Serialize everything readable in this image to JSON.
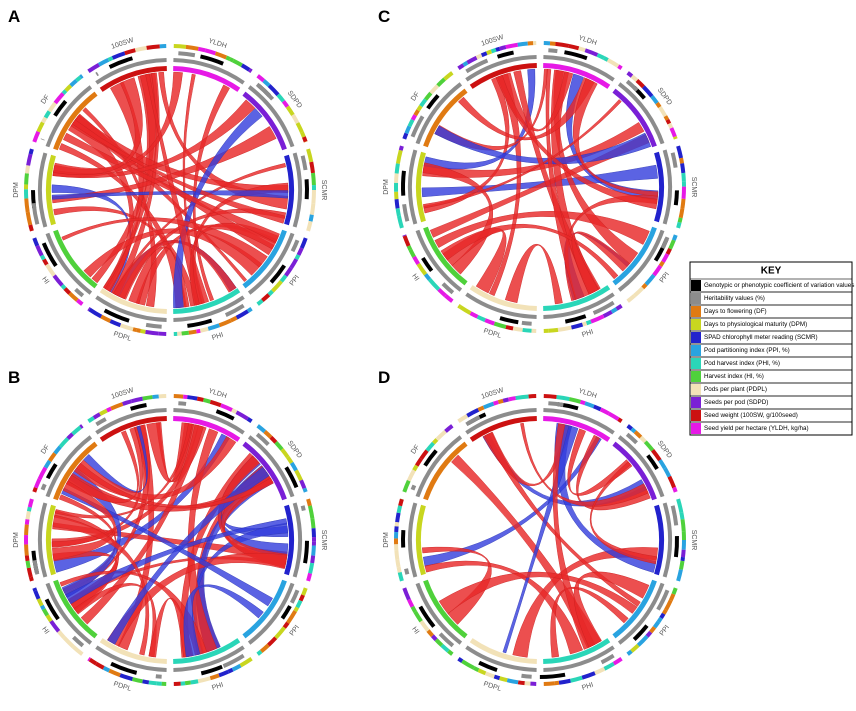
{
  "panels": [
    {
      "label": "A",
      "segments": [
        {
          "label": "YLDH",
          "color": "#e619e6"
        },
        {
          "label": "SDPD",
          "color": "#7a1fd6"
        },
        {
          "label": "SCMR",
          "color": "#2222cc"
        },
        {
          "label": "PPI",
          "color": "#29a3e0"
        },
        {
          "label": "PHI",
          "color": "#2ad6b8"
        },
        {
          "label": "PDPL",
          "color": "#f2e2b8"
        },
        {
          "label": "HI",
          "color": "#4fd13b"
        },
        {
          "label": "DPM",
          "color": "#c8d61f"
        },
        {
          "label": "DF",
          "color": "#e07a12"
        },
        {
          "label": "100SW",
          "color": "#cc1111"
        }
      ]
    },
    {
      "label": "C",
      "segments": [
        {
          "label": "YLDH",
          "color": "#e619e6"
        },
        {
          "label": "SDPD",
          "color": "#7a1fd6"
        },
        {
          "label": "SCMR",
          "color": "#2222cc"
        },
        {
          "label": "PPI",
          "color": "#29a3e0"
        },
        {
          "label": "PHI",
          "color": "#2ad6b8"
        },
        {
          "label": "PDPL",
          "color": "#f2e2b8"
        },
        {
          "label": "HI",
          "color": "#4fd13b"
        },
        {
          "label": "DPM",
          "color": "#c8d61f"
        },
        {
          "label": "DF",
          "color": "#e07a12"
        },
        {
          "label": "100SW",
          "color": "#cc1111"
        }
      ]
    },
    {
      "label": "B",
      "segments": [
        {
          "label": "YLDH",
          "color": "#e619e6"
        },
        {
          "label": "SDPD",
          "color": "#7a1fd6"
        },
        {
          "label": "SCMR",
          "color": "#2222cc"
        },
        {
          "label": "PPI",
          "color": "#29a3e0"
        },
        {
          "label": "PHI",
          "color": "#2ad6b8"
        },
        {
          "label": "PDPL",
          "color": "#f2e2b8"
        },
        {
          "label": "HI",
          "color": "#4fd13b"
        },
        {
          "label": "DPM",
          "color": "#c8d61f"
        },
        {
          "label": "DF",
          "color": "#e07a12"
        },
        {
          "label": "100SW",
          "color": "#cc1111"
        }
      ]
    },
    {
      "label": "D",
      "segments": [
        {
          "label": "YLDH",
          "color": "#e619e6"
        },
        {
          "label": "SDPD",
          "color": "#7a1fd6"
        },
        {
          "label": "SCMR",
          "color": "#2222cc"
        },
        {
          "label": "PPI",
          "color": "#29a3e0"
        },
        {
          "label": "PHI",
          "color": "#2ad6b8"
        },
        {
          "label": "PDPL",
          "color": "#f2e2b8"
        },
        {
          "label": "HI",
          "color": "#4fd13b"
        },
        {
          "label": "DPM",
          "color": "#c8d61f"
        },
        {
          "label": "DF",
          "color": "#e07a12"
        },
        {
          "label": "100SW",
          "color": "#cc1111"
        }
      ]
    }
  ],
  "key": {
    "title": "KEY",
    "items": [
      {
        "label": "Genotypic or phenotypic coefficient of variation values (%)",
        "color": "#000000"
      },
      {
        "label": "Heritability values (%)",
        "color": "#8c8c8c"
      },
      {
        "label": "Days to flowering (DF)",
        "color": "#e07a12"
      },
      {
        "label": "Days to physiological maturity (DPM)",
        "color": "#c8d61f"
      },
      {
        "label": "SPAD chlorophyll meter reading (SCMR)",
        "color": "#2222cc"
      },
      {
        "label": "Pod partitioning index (PPI, %)",
        "color": "#29a3e0"
      },
      {
        "label": "Pod harvest index (PHI, %)",
        "color": "#2ad6b8"
      },
      {
        "label": "Harvest index (HI, %)",
        "color": "#4fd13b"
      },
      {
        "label": "Pods per plant (PDPL)",
        "color": "#f2e2b8"
      },
      {
        "label": "Seeds per pod (SDPD)",
        "color": "#7a1fd6"
      },
      {
        "label": "Seed weight (100SW, g/100seed)",
        "color": "#cc1111"
      },
      {
        "label": "Seed yield per hectare (YLDH, kg/ha)",
        "color": "#e619e6"
      }
    ]
  }
}
